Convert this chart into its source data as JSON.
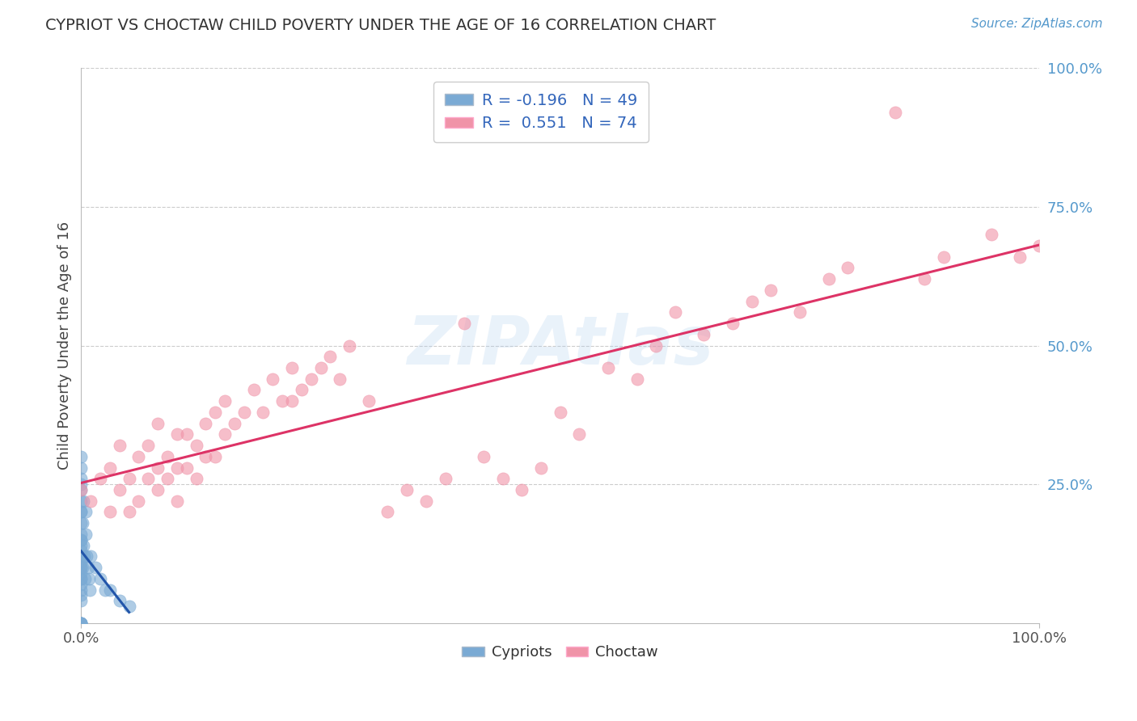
{
  "title": "CYPRIOT VS CHOCTAW CHILD POVERTY UNDER THE AGE OF 16 CORRELATION CHART",
  "source_text": "Source: ZipAtlas.com",
  "ylabel": "Child Poverty Under the Age of 16",
  "watermark": "ZIPAtlas",
  "cypriot_color": "#7aaad4",
  "choctaw_color": "#f093a8",
  "cypriot_line_color": "#2255aa",
  "choctaw_line_color": "#dd3366",
  "background_color": "#ffffff",
  "grid_color": "#cccccc",
  "right_tick_color": "#5599cc",
  "xlim": [
    0,
    1
  ],
  "ylim": [
    0,
    1
  ],
  "cypriot_R": -0.196,
  "cypriot_N": 49,
  "choctaw_R": 0.551,
  "choctaw_N": 74,
  "cypriot_x": [
    0.0,
    0.0,
    0.0,
    0.0,
    0.0,
    0.0,
    0.0,
    0.0,
    0.0,
    0.0,
    0.0,
    0.0,
    0.0,
    0.0,
    0.0,
    0.0,
    0.0,
    0.0,
    0.0,
    0.0,
    0.0,
    0.0,
    0.0,
    0.0,
    0.0,
    0.0,
    0.0,
    0.0,
    0.0,
    0.0,
    0.001,
    0.001,
    0.002,
    0.002,
    0.003,
    0.004,
    0.005,
    0.005,
    0.006,
    0.007,
    0.008,
    0.009,
    0.01,
    0.015,
    0.02,
    0.025,
    0.03,
    0.04,
    0.05
  ],
  "cypriot_y": [
    0.0,
    0.0,
    0.0,
    0.0,
    0.0,
    0.05,
    0.07,
    0.08,
    0.09,
    0.1,
    0.11,
    0.12,
    0.13,
    0.14,
    0.15,
    0.16,
    0.18,
    0.2,
    0.22,
    0.24,
    0.26,
    0.28,
    0.3,
    0.25,
    0.2,
    0.15,
    0.1,
    0.08,
    0.06,
    0.04,
    0.1,
    0.18,
    0.14,
    0.22,
    0.12,
    0.08,
    0.16,
    0.2,
    0.12,
    0.1,
    0.08,
    0.06,
    0.12,
    0.1,
    0.08,
    0.06,
    0.06,
    0.04,
    0.03
  ],
  "choctaw_x": [
    0.0,
    0.01,
    0.02,
    0.03,
    0.03,
    0.04,
    0.04,
    0.05,
    0.05,
    0.06,
    0.06,
    0.07,
    0.07,
    0.08,
    0.08,
    0.08,
    0.09,
    0.09,
    0.1,
    0.1,
    0.1,
    0.11,
    0.11,
    0.12,
    0.12,
    0.13,
    0.13,
    0.14,
    0.14,
    0.15,
    0.15,
    0.16,
    0.17,
    0.18,
    0.19,
    0.2,
    0.21,
    0.22,
    0.22,
    0.23,
    0.24,
    0.25,
    0.26,
    0.27,
    0.28,
    0.3,
    0.32,
    0.34,
    0.36,
    0.38,
    0.4,
    0.42,
    0.44,
    0.46,
    0.48,
    0.5,
    0.52,
    0.55,
    0.58,
    0.6,
    0.62,
    0.65,
    0.68,
    0.7,
    0.72,
    0.75,
    0.78,
    0.8,
    0.85,
    0.88,
    0.9,
    0.95,
    0.98,
    1.0
  ],
  "choctaw_y": [
    0.24,
    0.22,
    0.26,
    0.2,
    0.28,
    0.24,
    0.32,
    0.2,
    0.26,
    0.22,
    0.3,
    0.26,
    0.32,
    0.24,
    0.28,
    0.36,
    0.26,
    0.3,
    0.22,
    0.28,
    0.34,
    0.28,
    0.34,
    0.26,
    0.32,
    0.3,
    0.36,
    0.3,
    0.38,
    0.34,
    0.4,
    0.36,
    0.38,
    0.42,
    0.38,
    0.44,
    0.4,
    0.46,
    0.4,
    0.42,
    0.44,
    0.46,
    0.48,
    0.44,
    0.5,
    0.4,
    0.2,
    0.24,
    0.22,
    0.26,
    0.54,
    0.3,
    0.26,
    0.24,
    0.28,
    0.38,
    0.34,
    0.46,
    0.44,
    0.5,
    0.56,
    0.52,
    0.54,
    0.58,
    0.6,
    0.56,
    0.62,
    0.64,
    0.92,
    0.62,
    0.66,
    0.7,
    0.66,
    0.68
  ]
}
